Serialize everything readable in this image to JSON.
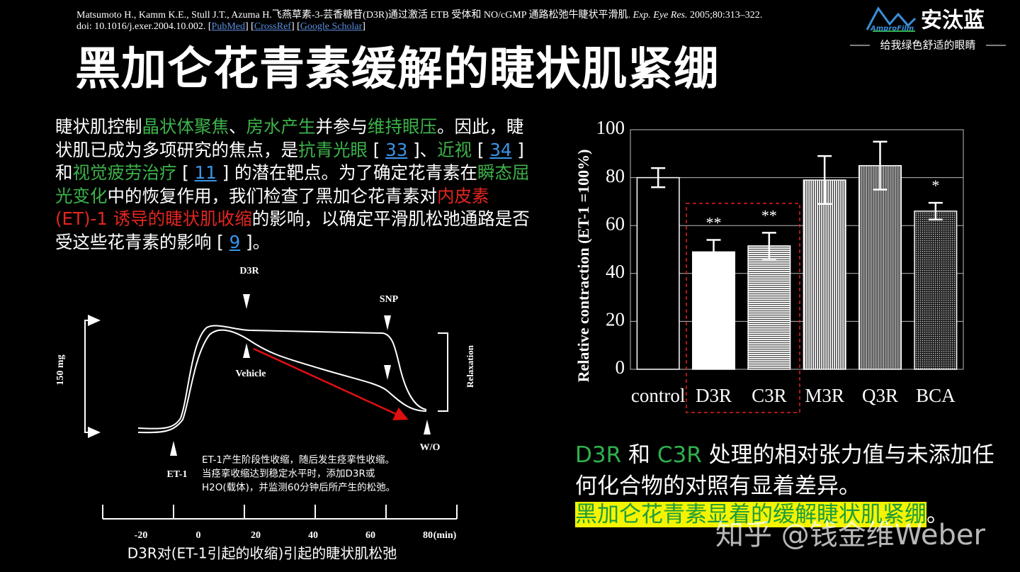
{
  "citation": {
    "line1": [
      {
        "text": "Matsumoto H., Kamm K.E., Stull J.T., Azuma H.飞燕草素-3-芸香糖苷(D3R)通过激活 ETB 受体和 NO/cGMP 通路松弛牛睫状平滑肌. "
      },
      {
        "text": "Exp. Eye Res.",
        "italic": true
      },
      {
        "text": " 2005;80:313–322."
      }
    ],
    "line2": [
      {
        "text": "doi: 10.1016/j.exer.2004.10.002. ["
      },
      {
        "text": "PubMed",
        "link": true
      },
      {
        "text": "] ["
      },
      {
        "text": "CrossRef",
        "link": true
      },
      {
        "text": "] ["
      },
      {
        "text": "Google Scholar",
        "link": true
      },
      {
        "text": "]"
      }
    ]
  },
  "logo": {
    "brand": "AmproFilm",
    "name": "安汰蓝",
    "slogan": "给我绿色舒适的眼睛"
  },
  "title": "黑加仑花青素缓解的睫状肌紧绷",
  "paragraph": {
    "segments": [
      {
        "text": "睫状肌控制"
      },
      {
        "text": "晶状体聚焦",
        "color": "#3cb34a"
      },
      {
        "text": "、"
      },
      {
        "text": "房水产生",
        "color": "#3cb34a"
      },
      {
        "text": "并参与"
      },
      {
        "text": "维持眼压",
        "color": "#3cb34a"
      },
      {
        "text": "。因此，睫状肌已成为多项研究的焦点，是"
      },
      {
        "text": "抗青光眼",
        "color": "#3cb34a"
      },
      {
        "text": " [ "
      },
      {
        "text": "33",
        "link": true
      },
      {
        "text": " ]、"
      },
      {
        "text": "近视",
        "color": "#3cb34a"
      },
      {
        "text": " [ "
      },
      {
        "text": "34",
        "link": true
      },
      {
        "text": " ] 和"
      },
      {
        "text": "视觉疲劳治疗",
        "color": "#3cb34a"
      },
      {
        "text": " [ "
      },
      {
        "text": "11",
        "link": true
      },
      {
        "text": " ] 的潜在靶点。为了确定花青素在"
      },
      {
        "text": "瞬态屈光变化",
        "color": "#3cb34a"
      },
      {
        "text": "中的恢复作用，我们检查了黑加仑花青素对"
      },
      {
        "text": "内皮素 (ET)-1 诱导的睫状肌收缩",
        "color": "#e3261f"
      },
      {
        "text": "的影响，以确定平滑肌松弛通路是否受这些花青素的影响 [ "
      },
      {
        "text": "9",
        "link": true
      },
      {
        "text": " ]。"
      }
    ]
  },
  "diagram": {
    "labels": {
      "d3r": "D3R",
      "snp": "SNP",
      "vehicle": "Vehicle",
      "relaxation": "Relaxation",
      "scale": "150  mg",
      "et1": "ET-1",
      "wo": "W/O"
    },
    "note": [
      "ET-1产生阶段性收缩，随后发生痉挛性收缩。",
      "当痉挛收缩达到稳定水平时，添加D3R或",
      "H2O(载体)，并监测60分钟后所产生的松弛。"
    ],
    "axis": {
      "ticks": [
        -20,
        0,
        20,
        40,
        60,
        80
      ],
      "unit": "(min)"
    },
    "caption": "D3R对(ET-1引起的收缩)引起的睫状肌松弛"
  },
  "chart_data": {
    "type": "bar",
    "ylabel": "Relative contraction   (ET-1 =100%)",
    "categories": [
      "control",
      "D3R",
      "C3R",
      "M3R",
      "Q3R",
      "BCA"
    ],
    "values": [
      80,
      49,
      51.5,
      79,
      85,
      66
    ],
    "errors": [
      4,
      5,
      5.5,
      10,
      10,
      3.5
    ],
    "fills": [
      "solid-black",
      "solid-white",
      "hlines",
      "vlines",
      "dense-vlines",
      "dots"
    ],
    "annotations": [
      {
        "index": 1,
        "text": "**"
      },
      {
        "index": 2,
        "text": "**"
      },
      {
        "index": 5,
        "text": "*"
      }
    ],
    "ylim": [
      0,
      100
    ],
    "yticks": [
      0,
      20,
      40,
      60,
      80,
      100
    ],
    "grid": true
  },
  "conclusion": {
    "part1": [
      {
        "text": "D3R",
        "color": "#2fb14c"
      },
      {
        "text": " 和 "
      },
      {
        "text": "C3R",
        "color": "#2fb14c"
      },
      {
        "text": " 处理的相对张力值与未添加任何化合物的对照有显着差异。"
      }
    ],
    "part2": [
      {
        "text": "黑加仑花青素显着的缓解睫状肌紧绷",
        "color": "#1f9c3c",
        "highlight": "#f4f400"
      },
      {
        "text": "。"
      }
    ]
  },
  "watermark": "知乎 @钱金维Weber"
}
